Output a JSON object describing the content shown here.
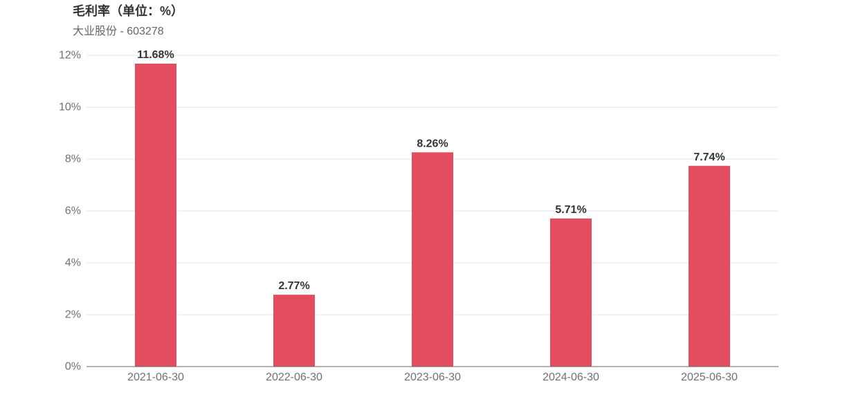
{
  "title": "毛利率（单位：%）",
  "subtitle": "大业股份 - 603278",
  "colors": {
    "bar": "#e44c60",
    "grid": "#e4e4ec",
    "axis": "#666666"
  },
  "chart_data": {
    "type": "bar",
    "categories": [
      "2021-06-30",
      "2022-06-30",
      "2023-06-30",
      "2024-06-30",
      "2025-06-30"
    ],
    "values": [
      11.68,
      2.77,
      8.26,
      5.71,
      7.74
    ],
    "data_labels": [
      "11.68%",
      "2.77%",
      "8.26%",
      "5.71%",
      "7.74%"
    ],
    "y_ticks": [
      0,
      2,
      4,
      6,
      8,
      10,
      12
    ],
    "y_tick_labels": [
      "0%",
      "2%",
      "4%",
      "6%",
      "8%",
      "10%",
      "12%"
    ],
    "ylim": [
      0,
      12
    ],
    "grid": true
  }
}
